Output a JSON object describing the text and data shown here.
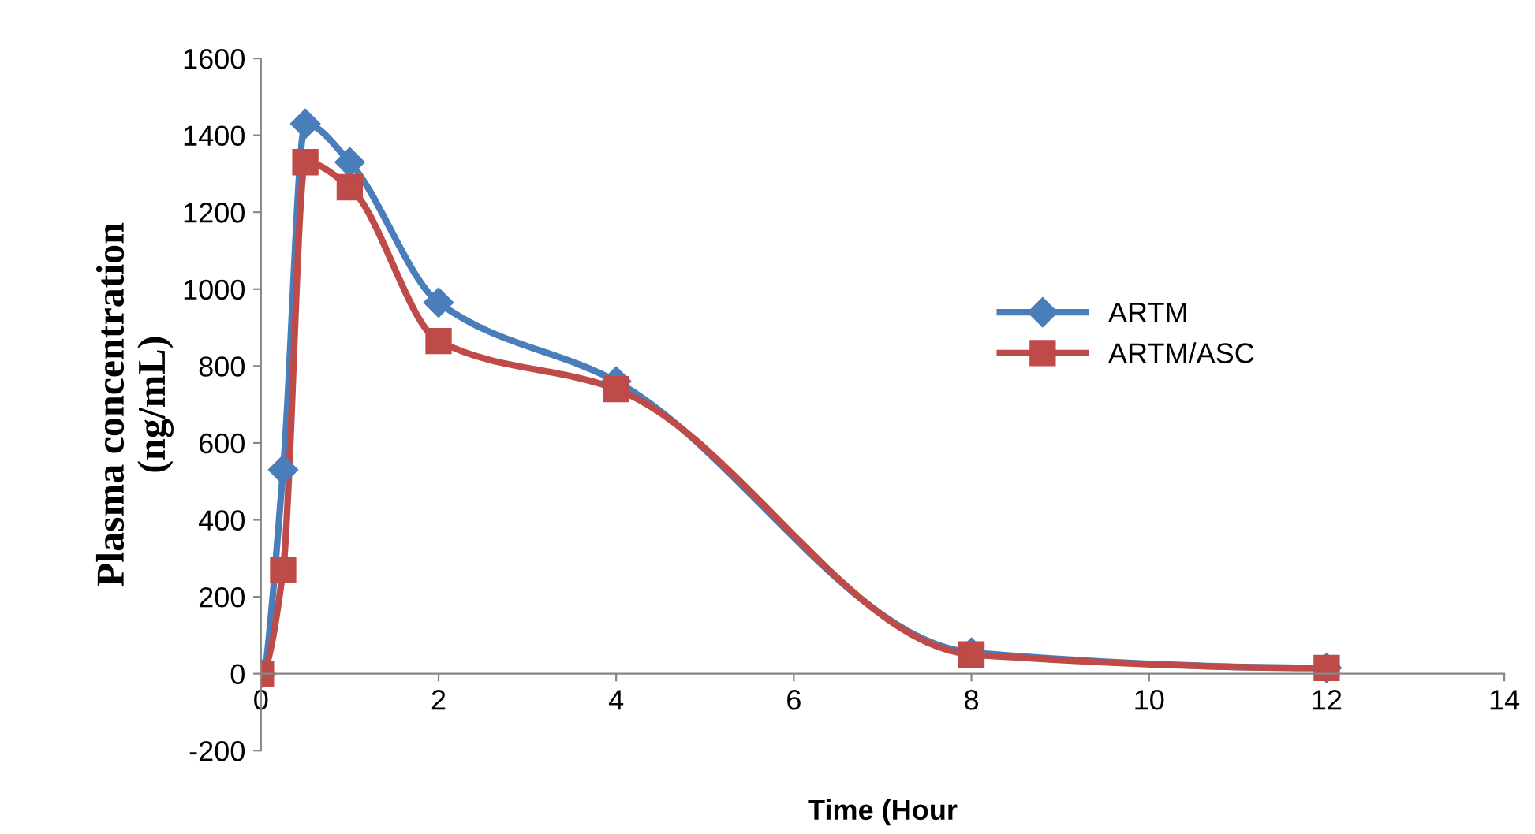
{
  "chart_data": {
    "type": "line",
    "xlabel": "Time (Hour",
    "ylabel": "Plasma concentration\n(ng/mL)",
    "xlim": [
      0,
      14
    ],
    "xticks": [
      0,
      2,
      4,
      6,
      8,
      10,
      12,
      14
    ],
    "ylim": [
      -200,
      1600
    ],
    "yticks": [
      -200,
      0,
      200,
      400,
      600,
      800,
      1000,
      1200,
      1400,
      1600
    ],
    "grid": false,
    "legend": "right",
    "line_style": "solid",
    "series": [
      {
        "name": "ARTM",
        "color": "#4a7ebb",
        "marker": "diamond",
        "x": [
          0,
          0.25,
          0.5,
          1,
          2,
          4,
          8,
          12
        ],
        "values": [
          0,
          530,
          1430,
          1330,
          965,
          760,
          55,
          15
        ]
      },
      {
        "name": "ARTM/ASC",
        "color": "#be4b48",
        "marker": "square",
        "x": [
          0,
          0.25,
          0.5,
          1,
          2,
          4,
          8,
          12
        ],
        "values": [
          0,
          270,
          1330,
          1265,
          865,
          740,
          50,
          15
        ]
      }
    ]
  }
}
